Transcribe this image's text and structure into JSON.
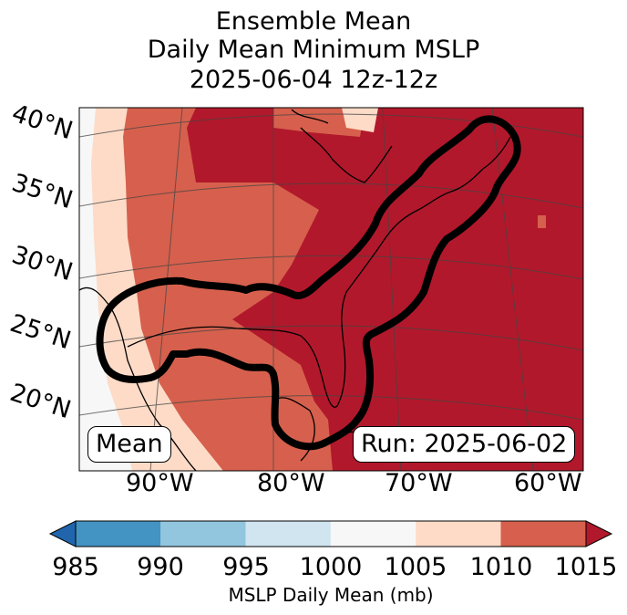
{
  "title": {
    "line1": "Ensemble Mean",
    "line2": "Daily Mean Minimum MSLP",
    "line3": "2025-06-04 12z-12z"
  },
  "map": {
    "lat_labels": [
      "40°N",
      "35°N",
      "30°N",
      "25°N",
      "20°N"
    ],
    "lon_labels": [
      "90°W",
      "80°W",
      "70°W",
      "60°W"
    ],
    "mean_label": "Mean",
    "run_label": "Run: 2025-06-02"
  },
  "colorbar": {
    "ticks": [
      "985",
      "990",
      "995",
      "1000",
      "1005",
      "1010",
      "1015"
    ],
    "colors": [
      "#4393c3",
      "#92c5de",
      "#d1e5f0",
      "#f7f7f7",
      "#fddbc7",
      "#d6604d",
      "#b2182b"
    ],
    "under_color": "#2166ac",
    "over_color": "#b2182b",
    "label": "MSLP Daily Mean (mb)"
  }
}
